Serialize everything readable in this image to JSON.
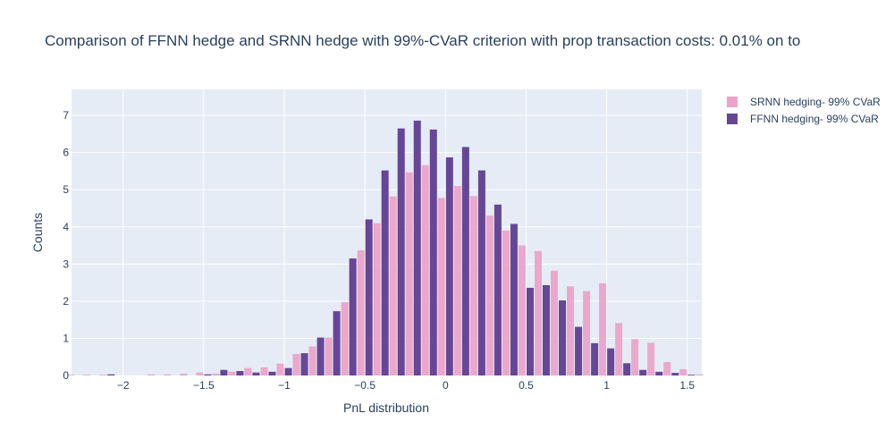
{
  "chart_data": {
    "type": "bar",
    "title": "Comparison of FFNN hedge and SRNN hedge with 99%-CVaR criterion with prop transaction costs: 0.01% on to",
    "xlabel": "PnL distribution",
    "ylabel": "Counts",
    "xlim": [
      -2.32,
      1.59
    ],
    "ylim": [
      0,
      7.7
    ],
    "bin_width": 0.1,
    "x_ticks": [
      -2,
      -1.5,
      -1,
      -0.5,
      0,
      0.5,
      1,
      1.5
    ],
    "x_tick_labels": [
      "−2",
      "−1.5",
      "−1",
      "−0.5",
      "0",
      "0.5",
      "1",
      "1.5"
    ],
    "y_ticks": [
      0,
      1,
      2,
      3,
      4,
      5,
      6,
      7
    ],
    "y_tick_labels": [
      "0",
      "1",
      "2",
      "3",
      "4",
      "5",
      "6",
      "7"
    ],
    "grid": true,
    "plot_background": "#e5ecf6",
    "legend_position": "top-right",
    "x": [
      -2.3,
      -2.2,
      -2.1,
      -2.0,
      -1.9,
      -1.8,
      -1.7,
      -1.6,
      -1.5,
      -1.4,
      -1.3,
      -1.2,
      -1.1,
      -1.0,
      -0.9,
      -0.8,
      -0.7,
      -0.6,
      -0.5,
      -0.4,
      -0.3,
      -0.2,
      -0.1,
      0.0,
      0.1,
      0.2,
      0.3,
      0.4,
      0.5,
      0.6,
      0.7,
      0.8,
      0.9,
      1.0,
      1.1,
      1.2,
      1.3,
      1.4,
      1.5,
      1.6
    ],
    "series": [
      {
        "name": "SRNN hedging- 99% CVaR",
        "color": "#eba4c9",
        "values": [
          0.02,
          0.02,
          0.02,
          0,
          0,
          0.03,
          0.03,
          0.05,
          0.08,
          0.05,
          0.1,
          0.2,
          0.22,
          0.32,
          0.58,
          0.78,
          1.02,
          1.97,
          3.37,
          4.1,
          4.82,
          5.47,
          5.66,
          4.78,
          5.1,
          4.83,
          4.3,
          3.9,
          3.5,
          3.35,
          2.82,
          2.4,
          2.27,
          2.48,
          1.41,
          0.98,
          0.88,
          0.36,
          0.17,
          0.03
        ]
      },
      {
        "name": "FFNN hedging- 99% CVaR",
        "color": "#664796",
        "values": [
          0,
          0,
          0.03,
          0,
          0,
          0,
          0,
          0,
          0.03,
          0.15,
          0.12,
          0.08,
          0.1,
          0.2,
          0.6,
          1.02,
          1.73,
          3.15,
          4.2,
          5.52,
          6.65,
          6.86,
          6.62,
          5.87,
          6.15,
          5.52,
          4.6,
          4.08,
          2.36,
          2.43,
          2.02,
          1.31,
          0.87,
          0.73,
          0.33,
          0.15,
          0.1,
          0.07,
          0.02,
          0
        ]
      }
    ]
  }
}
